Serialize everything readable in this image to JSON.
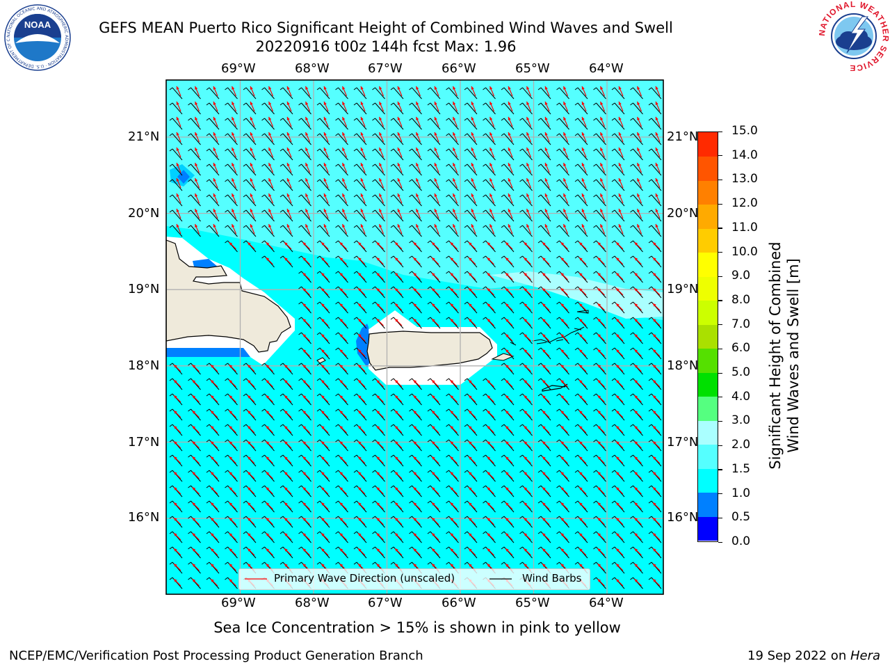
{
  "header": {
    "title_line1": "GEFS MEAN Puerto Rico Significant Height of Combined Wind Waves and Swell",
    "title_line2": "20220916 t00z 144h fcst   Max: 1.96"
  },
  "logos": {
    "left": "NOAA",
    "left_ring": "NATIONAL OCEANIC AND ATMOSPHERIC ADMINISTRATION · U.S. DEPARTMENT OF COMMERCE",
    "right_ring": "NATIONAL WEATHER SERVICE"
  },
  "map": {
    "lon_labels": [
      "69°W",
      "68°W",
      "67°W",
      "66°W",
      "65°W",
      "64°W"
    ],
    "lat_labels": [
      "21°N",
      "20°N",
      "19°N",
      "18°N",
      "17°N",
      "16°N"
    ],
    "extent": {
      "lon": [
        -70.0,
        -63.2
      ],
      "lat": [
        15.1,
        21.8
      ]
    },
    "background_color": "#00ffff",
    "land_color": "#efeadb",
    "wave_arrow_color": "#ff0000",
    "wind_barb_color": "#000000"
  },
  "legend": {
    "wave_label": "Primary Wave Direction (unscaled)",
    "wind_label": "Wind Barbs"
  },
  "colorbar": {
    "title_line1": "Significant Height of Combined",
    "title_line2": "Wind Waves and Swell [m]",
    "ticks": [
      "0.0",
      "0.5",
      "1.0",
      "1.5",
      "2.0",
      "3.0",
      "4.0",
      "5.0",
      "6.0",
      "7.0",
      "8.0",
      "9.0",
      "10.0",
      "11.0",
      "12.0",
      "13.0",
      "14.0",
      "15.0"
    ],
    "colors": [
      "#0000ff",
      "#0080ff",
      "#00ffff",
      "#55ffff",
      "#aaffff",
      "#55ff80",
      "#00e000",
      "#55e000",
      "#aae000",
      "#ccff00",
      "#eeff00",
      "#ffff00",
      "#ffcc00",
      "#ffaa00",
      "#ff8000",
      "#ff5500",
      "#ff2a00",
      "#ff0000"
    ]
  },
  "note": "Sea Ice Concentration > 15% is shown in pink to yellow",
  "footer": {
    "left": "NCEP/EMC/Verification Post Processing Product Generation Branch",
    "date": "19 Sep 2022 on ",
    "machine": "Hera"
  }
}
